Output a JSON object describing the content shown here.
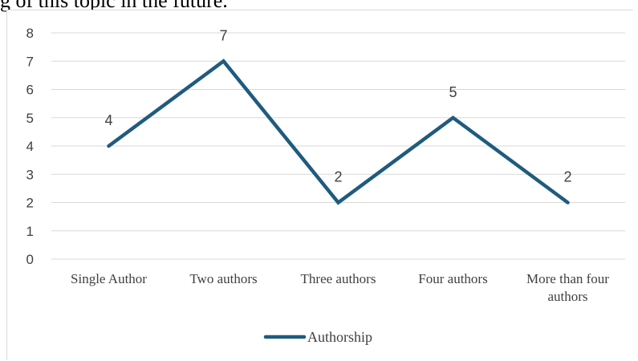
{
  "page": {
    "top_text": "g of this topic in the future."
  },
  "colors": {
    "series_line": "#1f5b7e",
    "gridline": "#d9d9d9",
    "text": "#404040"
  },
  "chart_data": {
    "type": "line",
    "categories": [
      "Single Author",
      "Two authors",
      "Three authors",
      "Four authors",
      "More than four authors"
    ],
    "series": [
      {
        "name": "Authorship",
        "values": [
          4,
          7,
          2,
          5,
          2
        ]
      }
    ],
    "data_labels": [
      "4",
      "7",
      "2",
      "5",
      "2"
    ],
    "y_ticks": [
      "0",
      "1",
      "2",
      "3",
      "4",
      "5",
      "6",
      "7",
      "8"
    ],
    "ylim": [
      0,
      8
    ],
    "grid": true,
    "legend_position": "bottom",
    "title": "",
    "xlabel": "",
    "ylabel": ""
  }
}
